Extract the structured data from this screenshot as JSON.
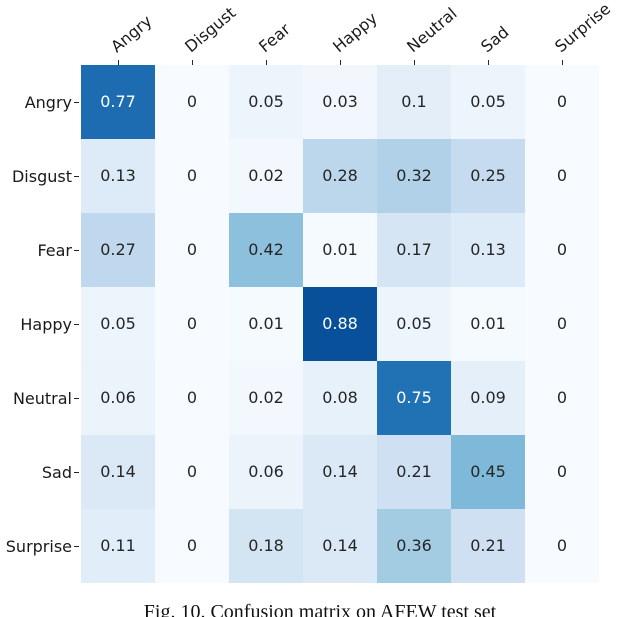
{
  "figure": {
    "caption": "Fig. 10. Confusion matrix on AFEW test set"
  },
  "chart_data": {
    "type": "heatmap",
    "title": "Confusion matrix on AFEW test set",
    "x_categories": [
      "Angry",
      "Disgust",
      "Fear",
      "Happy",
      "Neutral",
      "Sad",
      "Surprise"
    ],
    "y_categories": [
      "Angry",
      "Disgust",
      "Fear",
      "Happy",
      "Neutral",
      "Sad",
      "Surprise"
    ],
    "values": [
      [
        0.77,
        0,
        0.05,
        0.03,
        0.1,
        0.05,
        0
      ],
      [
        0.13,
        0,
        0.02,
        0.28,
        0.32,
        0.25,
        0
      ],
      [
        0.27,
        0,
        0.42,
        0.01,
        0.17,
        0.13,
        0
      ],
      [
        0.05,
        0,
        0.01,
        0.88,
        0.05,
        0.01,
        0
      ],
      [
        0.06,
        0,
        0.02,
        0.08,
        0.75,
        0.09,
        0
      ],
      [
        0.14,
        0,
        0.06,
        0.14,
        0.21,
        0.45,
        0
      ],
      [
        0.11,
        0,
        0.18,
        0.14,
        0.36,
        0.21,
        0
      ]
    ],
    "vmin": 0,
    "vmax": 1,
    "colormap": "Blues",
    "colormap_stops": [
      "#f7fbff",
      "#deebf7",
      "#c6dbef",
      "#9ecae1",
      "#6baed6",
      "#4292c6",
      "#2171b5",
      "#08519c",
      "#08306b"
    ],
    "cell_text_dark": "#262626",
    "cell_text_light": "#ffffff",
    "axis_text_color": "#1a1a1a",
    "tick_color": "#262626",
    "grid": false,
    "legend": "none",
    "x_tick_rotation_deg": 40
  }
}
